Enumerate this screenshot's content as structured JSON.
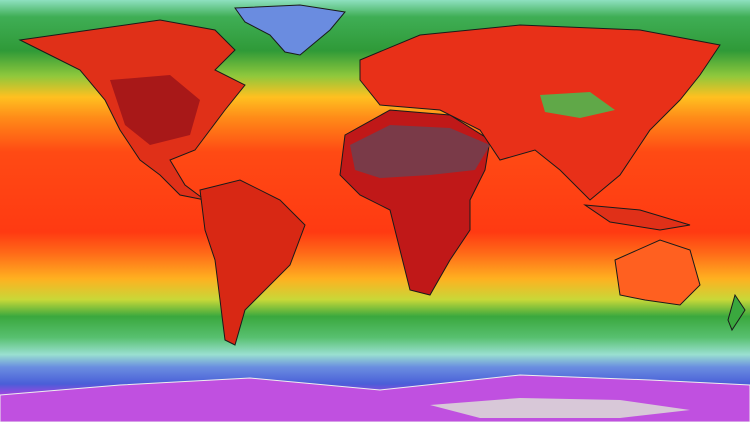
{
  "map": {
    "type": "global temperature map",
    "projection": "equirectangular",
    "colors": {
      "arctic": "#7fd9b8",
      "cool": "#2e9a3a",
      "mild": "#9fd24a",
      "warm": "#ffb020",
      "hot": "#ff4a14",
      "very_hot": "#b31010",
      "extreme": "#6e1a1a",
      "extreme_peak": "#b8a0b0",
      "cold": "#5a7be0",
      "very_cold": "#c040e0",
      "land_outline": "#1a1a1a"
    }
  }
}
